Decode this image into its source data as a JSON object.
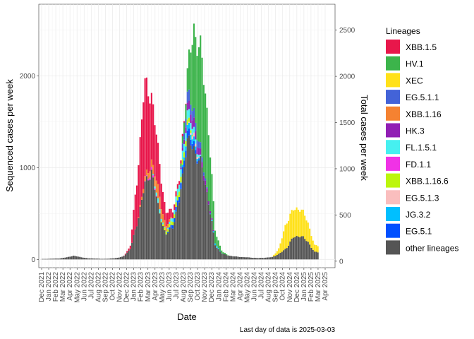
{
  "chart_data": {
    "type": "bar",
    "stacked": true,
    "xlabel": "Date",
    "ylabel": "Sequenced cases per week",
    "ylabel_right": "Total cases per week",
    "caption": "Last day of data is 2025-03-03",
    "legend_title": "Lineages",
    "legend_position": "right",
    "grid": true,
    "ylim": [
      -90,
      2780
    ],
    "ylim_right": [
      -70,
      2780
    ],
    "y_ticks": [
      0,
      1000,
      2000
    ],
    "y_ticks_right": [
      0,
      500,
      1000,
      1500,
      2000,
      2500
    ],
    "x_ticks": [
      "Dec 2021",
      "Jan 2022",
      "Feb 2022",
      "Mar 2022",
      "Apr 2022",
      "May 2022",
      "Jun 2022",
      "Jul 2022",
      "Aug 2022",
      "Sep 2022",
      "Oct 2022",
      "Nov 2022",
      "Dec 2022",
      "Jan 2023",
      "Feb 2023",
      "Mar 2023",
      "Apr 2023",
      "May 2023",
      "Jun 2023",
      "Jul 2023",
      "Aug 2023",
      "Sep 2023",
      "Oct 2023",
      "Nov 2023",
      "Dec 2023",
      "Jan 2024",
      "Feb 2024",
      "Mar 2024",
      "Apr 2024",
      "May 2024",
      "Jun 2024",
      "Jul 2024",
      "Aug 2024",
      "Sep 2024",
      "Oct 2024",
      "Nov 2024",
      "Dec 2024",
      "Jan 2025",
      "Feb 2025",
      "Mar 2025",
      "Apr 2025"
    ],
    "x_start": "2021-12",
    "series": [
      {
        "name": "XBB.1.5",
        "color": "#E8174B"
      },
      {
        "name": "HV.1",
        "color": "#3CB44B"
      },
      {
        "name": "XEC",
        "color": "#FFE119"
      },
      {
        "name": "EG.5.1.1",
        "color": "#4363D8"
      },
      {
        "name": "XBB.1.16",
        "color": "#F58231"
      },
      {
        "name": "HK.3",
        "color": "#911EB4"
      },
      {
        "name": "FL.1.5.1",
        "color": "#46F0F0"
      },
      {
        "name": "FD.1.1",
        "color": "#F032E6"
      },
      {
        "name": "XBB.1.16.6",
        "color": "#BCF60C"
      },
      {
        "name": "EG.5.1.3",
        "color": "#FABEBE"
      },
      {
        "name": "JG.3.2",
        "color": "#00BFFF"
      },
      {
        "name": "EG.5.1",
        "color": "#0050FF"
      },
      {
        "name": "other lineages",
        "color": "#555555"
      }
    ],
    "monthly_totals": [
      {
        "month": "2021-12",
        "total": 5,
        "composition": {
          "other lineages": 5
        }
      },
      {
        "month": "2022-01",
        "total": 8,
        "composition": {
          "other lineages": 8
        }
      },
      {
        "month": "2022-02",
        "total": 10,
        "composition": {
          "other lineages": 10
        }
      },
      {
        "month": "2022-03",
        "total": 22,
        "composition": {
          "other lineages": 22
        }
      },
      {
        "month": "2022-04",
        "total": 40,
        "composition": {
          "other lineages": 40
        }
      },
      {
        "month": "2022-05",
        "total": 25,
        "composition": {
          "other lineages": 25
        }
      },
      {
        "month": "2022-06",
        "total": 12,
        "composition": {
          "other lineages": 12
        }
      },
      {
        "month": "2022-07",
        "total": 10,
        "composition": {
          "other lineages": 10
        }
      },
      {
        "month": "2022-08",
        "total": 6,
        "composition": {
          "other lineages": 6
        }
      },
      {
        "month": "2022-09",
        "total": 8,
        "composition": {
          "other lineages": 8
        }
      },
      {
        "month": "2022-10",
        "total": 15,
        "composition": {
          "other lineages": 15
        }
      },
      {
        "month": "2022-11",
        "total": 30,
        "composition": {
          "other lineages": 30
        }
      },
      {
        "month": "2022-12",
        "total": 140,
        "composition": {
          "XBB.1.5": 30,
          "other lineages": 110
        }
      },
      {
        "month": "2023-01",
        "total": 900,
        "composition": {
          "XBB.1.5": 500,
          "other lineages": 400
        }
      },
      {
        "month": "2023-02",
        "total": 1900,
        "composition": {
          "XBB.1.5": 1050,
          "XBB.1.16": 50,
          "other lineages": 800
        }
      },
      {
        "month": "2023-03",
        "total": 1800,
        "composition": {
          "XBB.1.5": 720,
          "XBB.1.16": 80,
          "FD.1.1": 30,
          "other lineages": 970
        }
      },
      {
        "month": "2023-04",
        "total": 1150,
        "composition": {
          "XBB.1.5": 400,
          "XBB.1.16": 150,
          "FL.1.5.1": 50,
          "other lineages": 550
        }
      },
      {
        "month": "2023-05",
        "total": 500,
        "composition": {
          "XBB.1.5": 150,
          "XBB.1.16": 60,
          "XBB.1.16.6": 30,
          "other lineages": 260
        }
      },
      {
        "month": "2023-06",
        "total": 550,
        "composition": {
          "XBB.1.5": 70,
          "EG.5.1": 40,
          "FL.1.5.1": 40,
          "XBB.1.16.6": 40,
          "other lineages": 360
        }
      },
      {
        "month": "2023-07",
        "total": 900,
        "composition": {
          "XBB.1.5": 40,
          "EG.5.1": 60,
          "FL.1.5.1": 80,
          "XBB.1.16.6": 60,
          "other lineages": 660
        }
      },
      {
        "month": "2023-08",
        "total": 2000,
        "composition": {
          "HV.1": 200,
          "EG.5.1.1": 120,
          "HK.3": 80,
          "FL.1.5.1": 100,
          "JG.3.2": 60,
          "EG.5.1": 80,
          "XBB.1.16.6": 60,
          "other lineages": 1300
        }
      },
      {
        "month": "2023-09",
        "total": 2500,
        "composition": {
          "HV.1": 900,
          "EG.5.1.1": 100,
          "HK.3": 100,
          "FL.1.5.1": 60,
          "EG.5.1.3": 40,
          "JG.3.2": 50,
          "EG.5.1": 50,
          "other lineages": 1200
        }
      },
      {
        "month": "2023-10",
        "total": 2250,
        "composition": {
          "HV.1": 1100,
          "HK.3": 60,
          "EG.5.1.1": 60,
          "other lineages": 1030
        }
      },
      {
        "month": "2023-11",
        "total": 1500,
        "composition": {
          "HV.1": 800,
          "HK.3": 40,
          "other lineages": 660
        }
      },
      {
        "month": "2023-12",
        "total": 300,
        "composition": {
          "HV.1": 130,
          "JG.3.2": 20,
          "other lineages": 150
        }
      },
      {
        "month": "2024-01",
        "total": 80,
        "composition": {
          "HV.1": 20,
          "other lineages": 60
        }
      },
      {
        "month": "2024-02",
        "total": 40,
        "composition": {
          "other lineages": 40
        }
      },
      {
        "month": "2024-03",
        "total": 30,
        "composition": {
          "other lineages": 30
        }
      },
      {
        "month": "2024-04",
        "total": 25,
        "composition": {
          "other lineages": 25
        }
      },
      {
        "month": "2024-05",
        "total": 20,
        "composition": {
          "other lineages": 20
        }
      },
      {
        "month": "2024-06",
        "total": 15,
        "composition": {
          "other lineages": 15
        }
      },
      {
        "month": "2024-07",
        "total": 18,
        "composition": {
          "other lineages": 18
        }
      },
      {
        "month": "2024-08",
        "total": 25,
        "composition": {
          "other lineages": 25
        }
      },
      {
        "month": "2024-09",
        "total": 120,
        "composition": {
          "XEC": 60,
          "other lineages": 60
        }
      },
      {
        "month": "2024-10",
        "total": 400,
        "composition": {
          "XEC": 280,
          "other lineages": 120
        }
      },
      {
        "month": "2024-11",
        "total": 540,
        "composition": {
          "XEC": 300,
          "other lineages": 240
        }
      },
      {
        "month": "2024-12",
        "total": 560,
        "composition": {
          "XEC": 300,
          "other lineages": 260
        }
      },
      {
        "month": "2025-01",
        "total": 420,
        "composition": {
          "XEC": 220,
          "other lineages": 200
        }
      },
      {
        "month": "2025-02",
        "total": 150,
        "composition": {
          "XEC": 70,
          "other lineages": 80
        }
      }
    ]
  }
}
